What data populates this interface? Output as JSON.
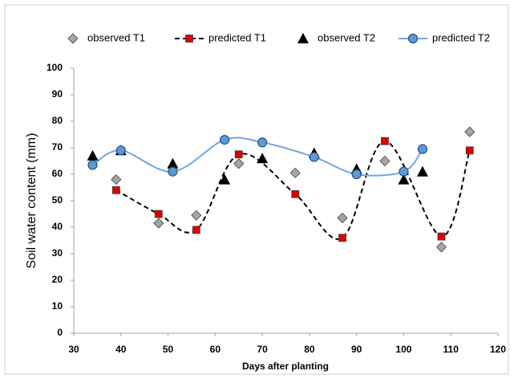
{
  "chart_data": {
    "type": "scatter-line",
    "xlabel": "Days after planting",
    "ylabel": "Soil water content (mm)",
    "xlim": [
      30,
      120
    ],
    "xticks": [
      30,
      40,
      50,
      60,
      70,
      80,
      90,
      100,
      110,
      120
    ],
    "ylim": [
      0,
      100
    ],
    "yticks": [
      0,
      10,
      20,
      30,
      40,
      50,
      60,
      70,
      80,
      90,
      100
    ],
    "grid": false,
    "legend": "top",
    "series": [
      {
        "name": "observed T1",
        "marker": "diamond",
        "color": "#a6a6a6",
        "line": "none",
        "x": [
          39,
          48,
          56,
          65,
          77,
          87,
          96,
          108,
          114
        ],
        "values": [
          58,
          41.5,
          44.5,
          64,
          60.5,
          43.5,
          65,
          32.5,
          76
        ]
      },
      {
        "name": "predicted T1",
        "marker": "square",
        "color": "#e00000",
        "line": "dashed",
        "line_color": "#000000",
        "x": [
          39,
          48,
          56,
          65,
          77,
          87,
          96,
          108,
          114
        ],
        "values": [
          54,
          45,
          39,
          67.5,
          52.5,
          36,
          72.5,
          36.5,
          69
        ]
      },
      {
        "name": "observed T2",
        "marker": "triangle",
        "color": "#000000",
        "line": "none",
        "x": [
          34,
          40,
          51,
          62,
          70,
          81,
          90,
          100,
          104
        ],
        "values": [
          67,
          69,
          64,
          58,
          66,
          68,
          62,
          58,
          61
        ]
      },
      {
        "name": "predicted T2",
        "marker": "circle",
        "color": "#5b9bd5",
        "line": "solid",
        "line_color": "#6fa8dc",
        "x": [
          34,
          40,
          51,
          62,
          70,
          81,
          90,
          100,
          104
        ],
        "values": [
          63.5,
          69,
          61,
          73,
          72,
          66.5,
          60,
          61,
          69.5
        ]
      }
    ]
  }
}
